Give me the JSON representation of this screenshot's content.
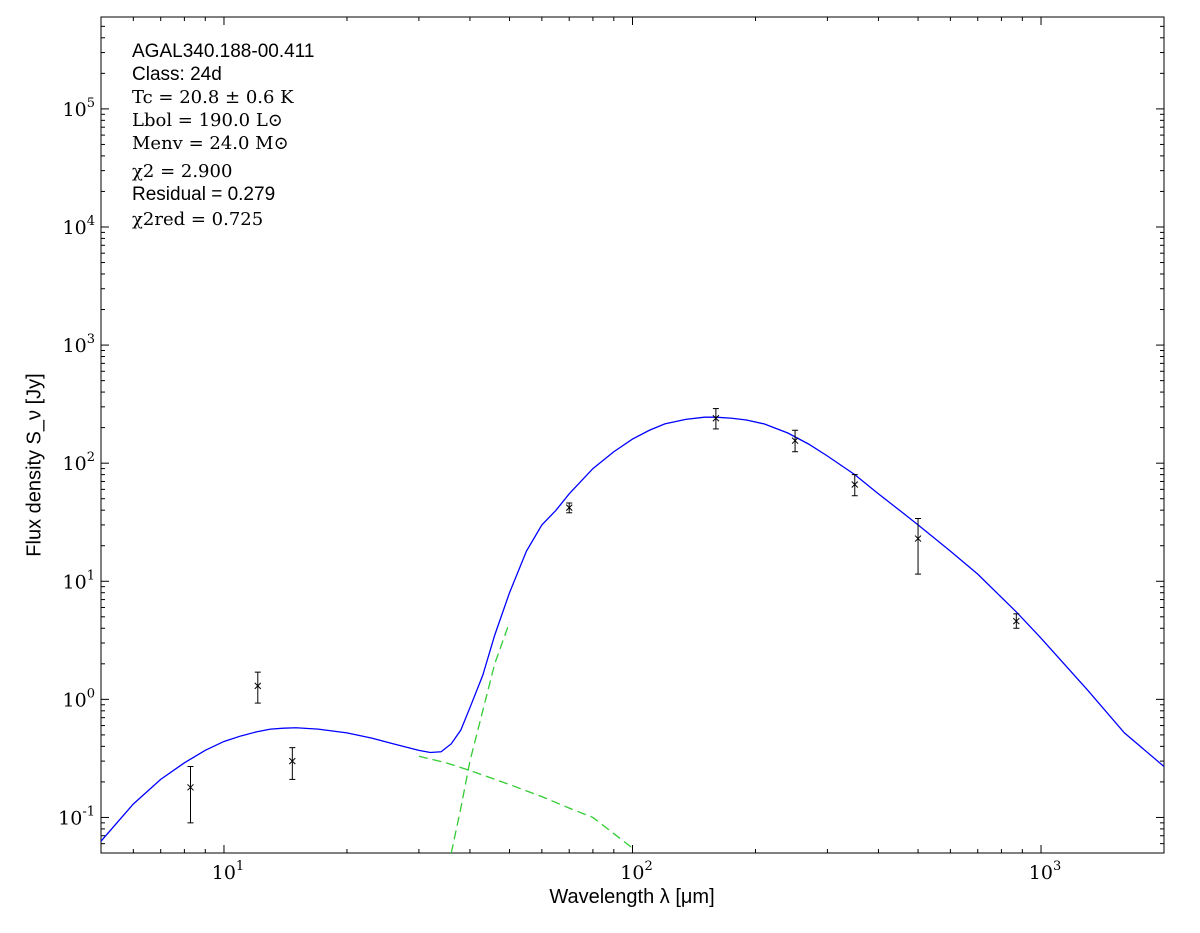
{
  "chart_data": {
    "type": "scatter",
    "title": "",
    "xlabel": "Wavelength λ [μm]",
    "ylabel": "Flux density S_ν [Jy]",
    "xscale": "log",
    "yscale": "log",
    "xlim": [
      5,
      2000
    ],
    "ylim": [
      0.05,
      600000
    ],
    "x_ticks": [
      {
        "value": 10,
        "label": "10^1"
      },
      {
        "value": 100,
        "label": "10^2"
      },
      {
        "value": 1000,
        "label": "10^3"
      }
    ],
    "y_ticks": [
      {
        "value": 0.1,
        "label": "10^-1"
      },
      {
        "value": 1,
        "label": "10^0"
      },
      {
        "value": 10,
        "label": "10^1"
      },
      {
        "value": 100,
        "label": "10^2"
      },
      {
        "value": 1000,
        "label": "10^3"
      },
      {
        "value": 10000,
        "label": "10^4"
      },
      {
        "value": 100000,
        "label": "10^5"
      }
    ],
    "annotation": {
      "source": "AGAL340.188-00.411",
      "class_line": "Class: 24d",
      "tc": "Tc = 20.8 ± 0.6 K",
      "lbol": "Lbol = 190.0 L⊙",
      "menv": "Menv = 24.0 M⊙",
      "chi2": "χ2 = 2.900",
      "residual": "Residual = 0.279",
      "chi2_red": "χ2red = 0.725"
    },
    "observations": [
      {
        "x": 8.28,
        "y": 0.18,
        "yerr_low": 0.09,
        "yerr_high": 0.27
      },
      {
        "x": 12.1,
        "y": 1.3,
        "yerr_low": 0.93,
        "yerr_high": 1.7
      },
      {
        "x": 14.7,
        "y": 0.3,
        "yerr_low": 0.21,
        "yerr_high": 0.39
      },
      {
        "x": 70,
        "y": 42,
        "yerr_low": 38,
        "yerr_high": 46
      },
      {
        "x": 160,
        "y": 240,
        "yerr_low": 195,
        "yerr_high": 290
      },
      {
        "x": 250,
        "y": 155,
        "yerr_low": 125,
        "yerr_high": 190
      },
      {
        "x": 350,
        "y": 66,
        "yerr_low": 53,
        "yerr_high": 80
      },
      {
        "x": 500,
        "y": 23,
        "yerr_low": 11.5,
        "yerr_high": 34
      },
      {
        "x": 870,
        "y": 4.6,
        "yerr_low": 4.0,
        "yerr_high": 5.3
      }
    ],
    "series": [
      {
        "style": "solid",
        "color": "#0000ff",
        "x": [
          5,
          6,
          7,
          8,
          9,
          10,
          11,
          12,
          13,
          14,
          15,
          17,
          20,
          23,
          26,
          30,
          32,
          34,
          36,
          38,
          40,
          43,
          46,
          50,
          55,
          60,
          65,
          70,
          80,
          90,
          100,
          110,
          120,
          135,
          150,
          160,
          175,
          190,
          210,
          240,
          270,
          300,
          350,
          400,
          450,
          500,
          600,
          700,
          870,
          1000,
          1300,
          1600,
          2000
        ],
        "y": [
          0.063,
          0.13,
          0.21,
          0.29,
          0.37,
          0.44,
          0.49,
          0.53,
          0.56,
          0.57,
          0.575,
          0.56,
          0.52,
          0.47,
          0.42,
          0.37,
          0.355,
          0.36,
          0.42,
          0.55,
          0.85,
          1.6,
          3.5,
          8,
          18,
          30,
          40,
          55,
          90,
          125,
          160,
          190,
          215,
          235,
          245,
          245,
          240,
          232,
          215,
          180,
          145,
          115,
          80,
          55,
          40,
          30,
          18,
          11.5,
          5.5,
          3.3,
          1.2,
          0.52,
          0.27
        ]
      },
      {
        "style": "dashed",
        "color": "#33cc33",
        "x": [
          30,
          35,
          40,
          50,
          60,
          70,
          80,
          100
        ],
        "y": [
          0.33,
          0.29,
          0.25,
          0.19,
          0.15,
          0.12,
          0.1,
          0.055
        ]
      },
      {
        "style": "dashed",
        "color": "#33cc33",
        "x": [
          36,
          38,
          40,
          43,
          46,
          50
        ],
        "y": [
          0.05,
          0.12,
          0.3,
          0.8,
          2.0,
          4.5
        ]
      }
    ]
  }
}
